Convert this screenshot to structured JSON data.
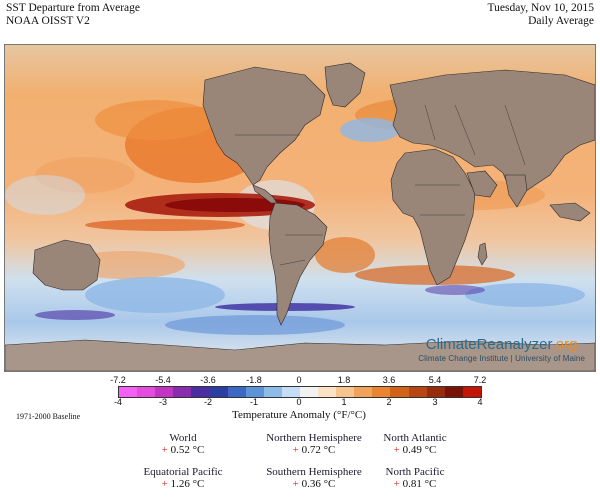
{
  "header": {
    "title": "SST Departure from Average",
    "dataset": "NOAA OISST V2",
    "date": "Tuesday, Nov 10, 2015",
    "period": "Daily Average"
  },
  "branding": {
    "name_part1": "ClimateReanalyzer",
    "name_part2": ".org",
    "subtitle": "Climate Change Institute | University of Maine"
  },
  "colors": {
    "land": "#9a8579",
    "land_highlight": "#b29d8f",
    "border": "#2b2b2b",
    "ocean_warm": "#f0a05a",
    "ocean_hot": "#8b0a0a"
  },
  "scale": {
    "top_labels": [
      "-7.2",
      "-5.4",
      "-3.6",
      "-1.8",
      "0",
      "1.8",
      "3.6",
      "5.4",
      "7.2"
    ],
    "bottom_labels": [
      "-4",
      "-3",
      "-2",
      "-1",
      "0",
      "1",
      "2",
      "3",
      "4"
    ],
    "colors": [
      "#f45ff5",
      "#e64be0",
      "#c235c4",
      "#8b2cb0",
      "#4b2ea2",
      "#2c3ea6",
      "#3d67c4",
      "#5d93d9",
      "#8fbbe8",
      "#c5ddf4",
      "#f2f2f2",
      "#fbe2c7",
      "#f7c38e",
      "#f2a35a",
      "#e98430",
      "#d36318",
      "#b94512",
      "#992b0d",
      "#7a120a",
      "#c41606"
    ],
    "title": "Temperature Anomaly (°F/°C)"
  },
  "baseline": "1971-2000 Baseline",
  "stats": [
    {
      "label": "World",
      "sign": "+",
      "value": "0.52 °C"
    },
    {
      "label": "Northern Hemisphere",
      "sign": "+",
      "value": "0.72 °C"
    },
    {
      "label": "North Atlantic",
      "sign": "+",
      "value": "0.49 °C"
    },
    {
      "label": "Equatorial Pacific",
      "sign": "+",
      "value": "1.26 °C"
    },
    {
      "label": "Southern Hemisphere",
      "sign": "+",
      "value": "0.36 °C"
    },
    {
      "label": "North Pacific",
      "sign": "+",
      "value": "0.81 °C"
    }
  ]
}
